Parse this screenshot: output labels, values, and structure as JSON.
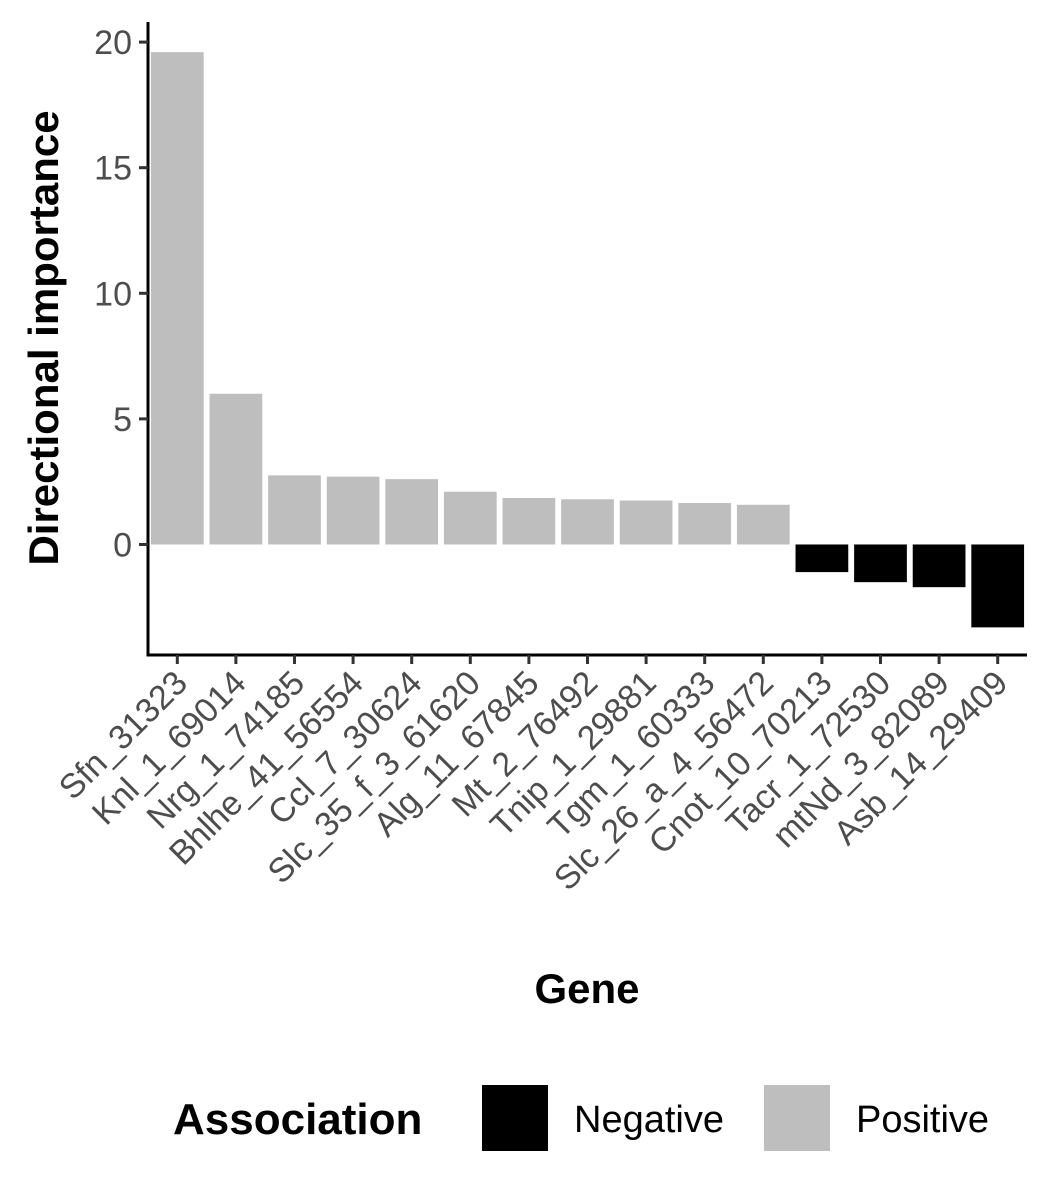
{
  "chart_data": {
    "type": "bar",
    "title": "",
    "xlabel": "Gene",
    "ylabel": "Directional importance",
    "ylim": [
      -4.4,
      20.8
    ],
    "yticks": [
      0,
      5,
      10,
      15,
      20
    ],
    "grid": false,
    "categories": [
      "Sfn_31323",
      "Knl_1_69014",
      "Nrg_1_74185",
      "Bhlhe_41_56554",
      "Ccl_7_30624",
      "Slc_35_f_3_61620",
      "Alg_11_67845",
      "Mt_2_76492",
      "Tnip_1_29881",
      "Tgm_1_60333",
      "Slc_26_a_4_56472",
      "Cnot_10_70213",
      "Tacr_1_72530",
      "mtNd_3_82089",
      "Asb_14_29409"
    ],
    "values": [
      19.6,
      6.0,
      2.75,
      2.7,
      2.6,
      2.1,
      1.85,
      1.8,
      1.75,
      1.65,
      1.58,
      -1.1,
      -1.5,
      -1.7,
      -3.3
    ],
    "association": [
      "Positive",
      "Positive",
      "Positive",
      "Positive",
      "Positive",
      "Positive",
      "Positive",
      "Positive",
      "Positive",
      "Positive",
      "Positive",
      "Negative",
      "Negative",
      "Negative",
      "Negative"
    ],
    "legend": {
      "title": "Association",
      "position": "bottom",
      "entries": [
        {
          "label": "Negative",
          "color": "#000000"
        },
        {
          "label": "Positive",
          "color": "#bebebe"
        }
      ]
    }
  }
}
